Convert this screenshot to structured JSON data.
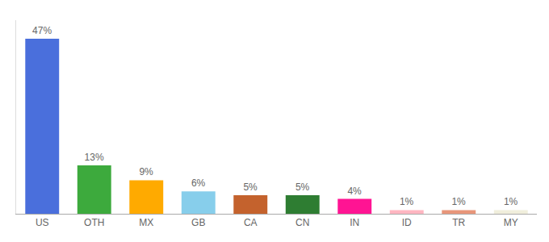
{
  "chart_data": {
    "type": "bar",
    "categories": [
      "US",
      "OTH",
      "MX",
      "GB",
      "CA",
      "CN",
      "IN",
      "ID",
      "TR",
      "MY"
    ],
    "values": [
      47,
      13,
      9,
      6,
      5,
      5,
      4,
      1,
      1,
      1
    ],
    "value_labels": [
      "47%",
      "13%",
      "9%",
      "6%",
      "5%",
      "5%",
      "4%",
      "1%",
      "1%",
      "1%"
    ],
    "colors": [
      "#4a6fdc",
      "#3daa3d",
      "#ffaa00",
      "#87ceeb",
      "#c4622d",
      "#2e7d32",
      "#ff1493",
      "#ffb6c1",
      "#e8967a",
      "#f0eedc"
    ],
    "ylim": [
      0,
      52
    ],
    "data_labels": true,
    "tick_labels": "x",
    "grid": false
  }
}
